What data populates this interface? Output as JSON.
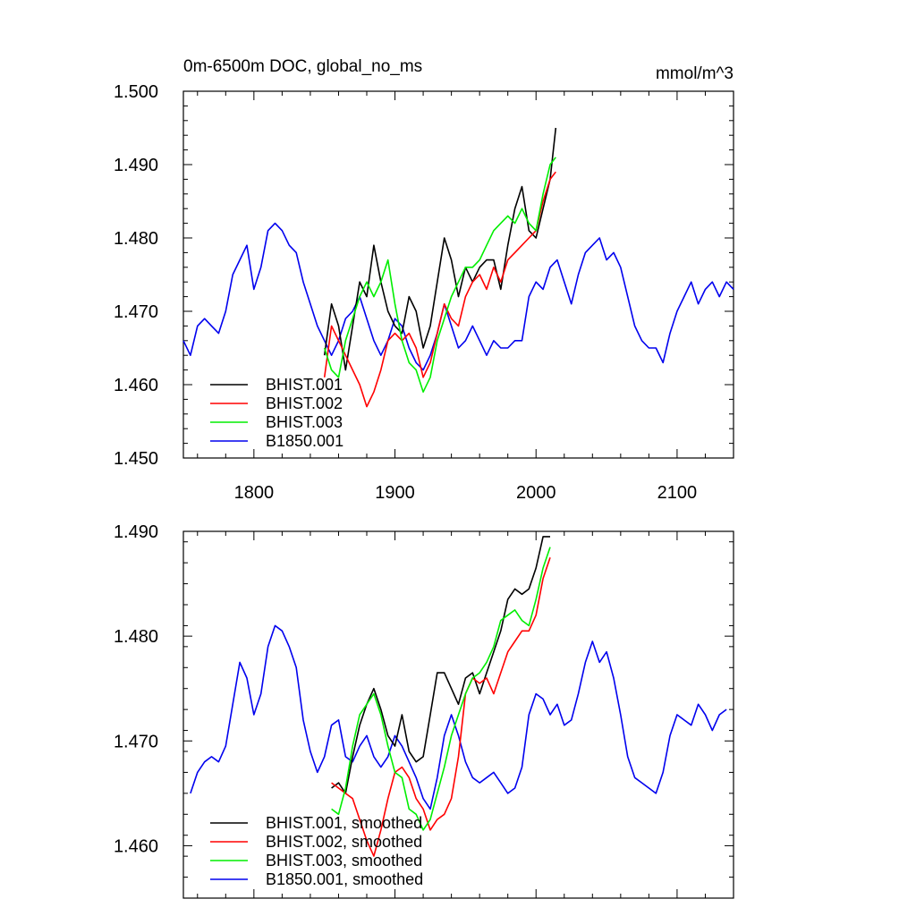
{
  "chart_data": [
    {
      "type": "line",
      "title": "0m-6500m DOC, global_no_ms",
      "units": "mmol/m^3",
      "xlim": [
        1750,
        2140
      ],
      "ylim": [
        1.45,
        1.5
      ],
      "x_ticks": [
        1800,
        1900,
        2000,
        2100
      ],
      "x_tick_labels": [
        "1800",
        "1900",
        "2000",
        "2100"
      ],
      "y_ticks": [
        1.45,
        1.46,
        1.47,
        1.48,
        1.49,
        1.5
      ],
      "y_tick_labels": [
        "1.450",
        "1.460",
        "1.470",
        "1.480",
        "1.490",
        "1.500"
      ],
      "legend_position": "bottom-left",
      "grid": false,
      "series": [
        {
          "name": "BHIST.001",
          "color": "#000000",
          "x": [
            1850,
            1855,
            1860,
            1865,
            1870,
            1875,
            1880,
            1885,
            1890,
            1895,
            1900,
            1905,
            1910,
            1915,
            1920,
            1925,
            1930,
            1935,
            1940,
            1945,
            1950,
            1955,
            1960,
            1965,
            1970,
            1975,
            1980,
            1985,
            1990,
            1995,
            2000,
            2005,
            2010,
            2014
          ],
          "y": [
            1.464,
            1.471,
            1.468,
            1.462,
            1.468,
            1.474,
            1.472,
            1.479,
            1.474,
            1.47,
            1.468,
            1.467,
            1.472,
            1.47,
            1.465,
            1.468,
            1.474,
            1.48,
            1.477,
            1.472,
            1.476,
            1.474,
            1.476,
            1.477,
            1.477,
            1.473,
            1.479,
            1.484,
            1.487,
            1.481,
            1.48,
            1.484,
            1.488,
            1.495
          ]
        },
        {
          "name": "BHIST.002",
          "color": "#ff0000",
          "x": [
            1850,
            1855,
            1860,
            1865,
            1870,
            1875,
            1880,
            1885,
            1890,
            1895,
            1900,
            1905,
            1910,
            1915,
            1920,
            1925,
            1930,
            1935,
            1940,
            1945,
            1950,
            1955,
            1960,
            1965,
            1970,
            1975,
            1980,
            1985,
            1990,
            1995,
            2000,
            2005,
            2010,
            2014
          ],
          "y": [
            1.461,
            1.468,
            1.466,
            1.464,
            1.462,
            1.46,
            1.457,
            1.459,
            1.462,
            1.466,
            1.467,
            1.466,
            1.467,
            1.465,
            1.461,
            1.463,
            1.467,
            1.471,
            1.469,
            1.468,
            1.472,
            1.474,
            1.475,
            1.473,
            1.476,
            1.474,
            1.477,
            1.478,
            1.479,
            1.48,
            1.481,
            1.485,
            1.488,
            1.489
          ]
        },
        {
          "name": "BHIST.003",
          "color": "#00ee00",
          "x": [
            1850,
            1855,
            1860,
            1865,
            1870,
            1875,
            1880,
            1885,
            1890,
            1895,
            1900,
            1905,
            1910,
            1915,
            1920,
            1925,
            1930,
            1935,
            1940,
            1945,
            1950,
            1955,
            1960,
            1965,
            1970,
            1975,
            1980,
            1985,
            1990,
            1995,
            2000,
            2005,
            2010,
            2014
          ],
          "y": [
            1.465,
            1.462,
            1.461,
            1.466,
            1.469,
            1.472,
            1.474,
            1.472,
            1.474,
            1.477,
            1.471,
            1.466,
            1.463,
            1.462,
            1.459,
            1.461,
            1.466,
            1.469,
            1.472,
            1.474,
            1.476,
            1.476,
            1.477,
            1.479,
            1.481,
            1.482,
            1.483,
            1.482,
            1.484,
            1.482,
            1.481,
            1.486,
            1.49,
            1.491
          ]
        },
        {
          "name": "B1850.001",
          "color": "#0000ee",
          "x": [
            1750,
            1755,
            1760,
            1765,
            1770,
            1775,
            1780,
            1785,
            1790,
            1795,
            1800,
            1805,
            1810,
            1815,
            1820,
            1825,
            1830,
            1835,
            1840,
            1845,
            1850,
            1855,
            1860,
            1865,
            1870,
            1875,
            1880,
            1885,
            1890,
            1895,
            1900,
            1905,
            1910,
            1915,
            1920,
            1925,
            1930,
            1935,
            1940,
            1945,
            1950,
            1955,
            1960,
            1965,
            1970,
            1975,
            1980,
            1985,
            1990,
            1995,
            2000,
            2005,
            2010,
            2015,
            2020,
            2025,
            2030,
            2035,
            2040,
            2045,
            2050,
            2055,
            2060,
            2065,
            2070,
            2075,
            2080,
            2085,
            2090,
            2095,
            2100,
            2105,
            2110,
            2115,
            2120,
            2125,
            2130,
            2135,
            2140
          ],
          "y": [
            1.466,
            1.464,
            1.468,
            1.469,
            1.468,
            1.467,
            1.47,
            1.475,
            1.477,
            1.479,
            1.473,
            1.476,
            1.481,
            1.482,
            1.481,
            1.479,
            1.478,
            1.474,
            1.471,
            1.468,
            1.466,
            1.464,
            1.466,
            1.469,
            1.47,
            1.472,
            1.469,
            1.466,
            1.464,
            1.466,
            1.469,
            1.468,
            1.465,
            1.463,
            1.462,
            1.464,
            1.467,
            1.471,
            1.468,
            1.465,
            1.466,
            1.468,
            1.466,
            1.464,
            1.466,
            1.465,
            1.465,
            1.466,
            1.466,
            1.472,
            1.474,
            1.473,
            1.476,
            1.477,
            1.474,
            1.471,
            1.475,
            1.478,
            1.479,
            1.48,
            1.477,
            1.478,
            1.476,
            1.472,
            1.468,
            1.466,
            1.465,
            1.465,
            1.463,
            1.467,
            1.47,
            1.472,
            1.474,
            1.471,
            1.473,
            1.474,
            1.472,
            1.474,
            1.473
          ]
        }
      ],
      "legend": [
        "BHIST.001",
        "BHIST.002",
        "BHIST.003",
        "B1850.001"
      ]
    },
    {
      "type": "line",
      "xlim": [
        1750,
        2140
      ],
      "ylim": [
        1.455,
        1.49
      ],
      "x_ticks": [
        1800,
        1900,
        2000,
        2100
      ],
      "y_ticks": [
        1.46,
        1.47,
        1.48,
        1.49
      ],
      "y_tick_labels": [
        "1.460",
        "1.470",
        "1.480",
        "1.490"
      ],
      "legend_position": "bottom-left",
      "grid": false,
      "series": [
        {
          "name": "BHIST.001, smoothed",
          "color": "#000000",
          "x": [
            1855,
            1860,
            1865,
            1870,
            1875,
            1880,
            1885,
            1890,
            1895,
            1900,
            1905,
            1910,
            1915,
            1920,
            1925,
            1930,
            1935,
            1940,
            1945,
            1950,
            1955,
            1960,
            1965,
            1970,
            1975,
            1980,
            1985,
            1990,
            1995,
            2000,
            2005,
            2010
          ],
          "y": [
            1.4655,
            1.466,
            1.465,
            1.4685,
            1.4715,
            1.4735,
            1.475,
            1.473,
            1.4705,
            1.4695,
            1.4725,
            1.469,
            1.468,
            1.4685,
            1.4725,
            1.4765,
            1.4765,
            1.475,
            1.4735,
            1.476,
            1.4765,
            1.4745,
            1.4765,
            1.4785,
            1.4805,
            1.4835,
            1.4845,
            1.484,
            1.4845,
            1.4865,
            1.4895,
            1.4895
          ]
        },
        {
          "name": "BHIST.002, smoothed",
          "color": "#ff0000",
          "x": [
            1855,
            1860,
            1865,
            1870,
            1875,
            1880,
            1885,
            1890,
            1895,
            1900,
            1905,
            1910,
            1915,
            1920,
            1925,
            1930,
            1935,
            1940,
            1945,
            1950,
            1955,
            1960,
            1965,
            1970,
            1975,
            1980,
            1985,
            1990,
            1995,
            2000,
            2005,
            2010
          ],
          "y": [
            1.466,
            1.4655,
            1.465,
            1.4645,
            1.4625,
            1.4605,
            1.459,
            1.4615,
            1.4645,
            1.467,
            1.4675,
            1.4665,
            1.4645,
            1.4635,
            1.4615,
            1.4625,
            1.463,
            1.4645,
            1.4685,
            1.4745,
            1.476,
            1.4755,
            1.476,
            1.4745,
            1.4765,
            1.4785,
            1.4795,
            1.4805,
            1.4805,
            1.482,
            1.4855,
            1.4875
          ]
        },
        {
          "name": "BHIST.003, smoothed",
          "color": "#00ee00",
          "x": [
            1855,
            1860,
            1865,
            1870,
            1875,
            1880,
            1885,
            1890,
            1895,
            1900,
            1905,
            1910,
            1915,
            1920,
            1925,
            1930,
            1935,
            1940,
            1945,
            1950,
            1955,
            1960,
            1965,
            1970,
            1975,
            1980,
            1985,
            1990,
            1995,
            2000,
            2005,
            2010
          ],
          "y": [
            1.4635,
            1.463,
            1.4655,
            1.4695,
            1.4725,
            1.4735,
            1.4745,
            1.4725,
            1.4695,
            1.467,
            1.4665,
            1.4635,
            1.463,
            1.4615,
            1.4625,
            1.465,
            1.4675,
            1.4705,
            1.4725,
            1.4745,
            1.476,
            1.4765,
            1.4775,
            1.479,
            1.4815,
            1.482,
            1.4825,
            1.4815,
            1.481,
            1.4835,
            1.4865,
            1.4885
          ]
        },
        {
          "name": "B1850.001, smoothed",
          "color": "#0000ee",
          "x": [
            1755,
            1760,
            1765,
            1770,
            1775,
            1780,
            1785,
            1790,
            1795,
            1800,
            1805,
            1810,
            1815,
            1820,
            1825,
            1830,
            1835,
            1840,
            1845,
            1850,
            1855,
            1860,
            1865,
            1870,
            1875,
            1880,
            1885,
            1890,
            1895,
            1900,
            1905,
            1910,
            1915,
            1920,
            1925,
            1930,
            1935,
            1940,
            1945,
            1950,
            1955,
            1960,
            1965,
            1970,
            1975,
            1980,
            1985,
            1990,
            1995,
            2000,
            2005,
            2010,
            2015,
            2020,
            2025,
            2030,
            2035,
            2040,
            2045,
            2050,
            2055,
            2060,
            2065,
            2070,
            2075,
            2080,
            2085,
            2090,
            2095,
            2100,
            2105,
            2110,
            2115,
            2120,
            2125,
            2130,
            2135
          ],
          "y": [
            1.465,
            1.467,
            1.468,
            1.4685,
            1.468,
            1.4695,
            1.4735,
            1.4775,
            1.476,
            1.4725,
            1.4745,
            1.479,
            1.481,
            1.4805,
            1.479,
            1.477,
            1.472,
            1.469,
            1.467,
            1.4685,
            1.4715,
            1.472,
            1.4685,
            1.468,
            1.4695,
            1.4705,
            1.4685,
            1.4675,
            1.4685,
            1.4705,
            1.4695,
            1.468,
            1.4665,
            1.4645,
            1.4635,
            1.4665,
            1.4705,
            1.4725,
            1.4705,
            1.468,
            1.4665,
            1.466,
            1.4665,
            1.467,
            1.466,
            1.465,
            1.4655,
            1.4675,
            1.4725,
            1.4745,
            1.474,
            1.4725,
            1.4735,
            1.4715,
            1.472,
            1.4745,
            1.4775,
            1.4795,
            1.4775,
            1.4785,
            1.476,
            1.4725,
            1.4685,
            1.4665,
            1.466,
            1.4655,
            1.465,
            1.467,
            1.4705,
            1.4725,
            1.472,
            1.4715,
            1.4735,
            1.4725,
            1.471,
            1.4725,
            1.473
          ]
        }
      ],
      "legend": [
        "BHIST.001, smoothed",
        "BHIST.002, smoothed",
        "BHIST.003, smoothed",
        "B1850.001, smoothed"
      ]
    }
  ]
}
